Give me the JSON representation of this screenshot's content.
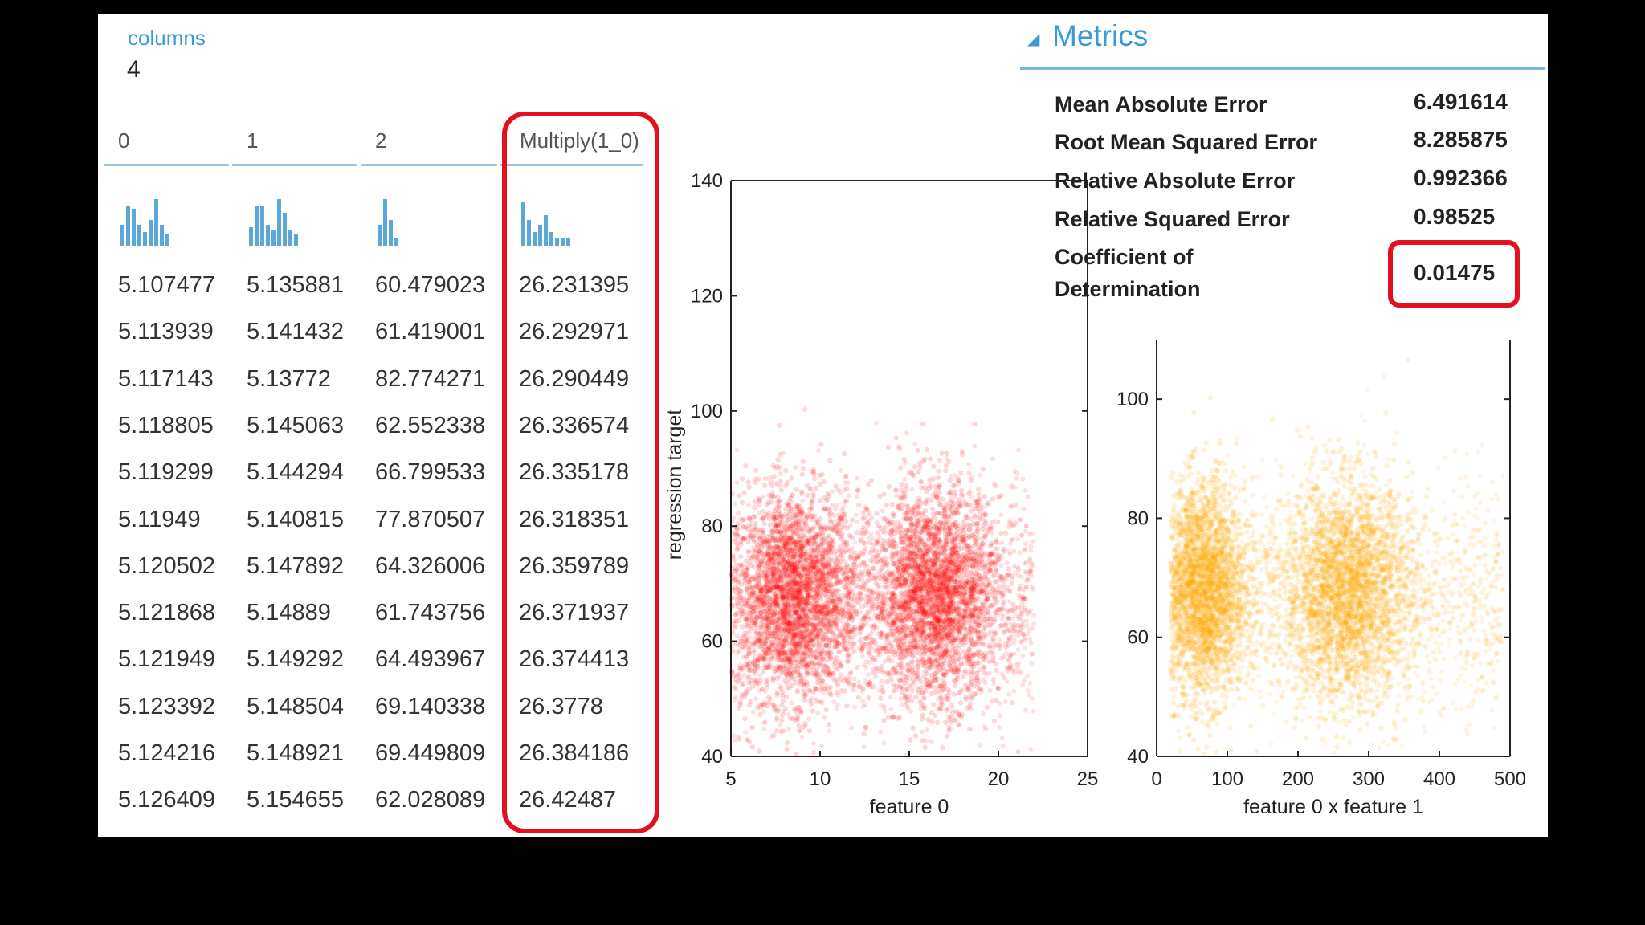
{
  "columns": {
    "label": "columns",
    "count": "4"
  },
  "table": {
    "headers": [
      "0",
      "1",
      "2",
      "Multiply(1_0)"
    ],
    "histograms": [
      [
        0.45,
        0.85,
        0.8,
        0.45,
        0.3,
        0.55,
        1.0,
        0.45,
        0.25
      ],
      [
        0.4,
        0.85,
        0.85,
        0.45,
        0.35,
        1.0,
        0.7,
        0.35,
        0.25
      ],
      [
        0.45,
        1.0,
        0.55,
        0.15
      ],
      [
        0.95,
        0.55,
        0.3,
        0.45,
        0.65,
        0.3,
        0.15,
        0.15,
        0.15
      ]
    ],
    "rows": [
      [
        "5.107477",
        "5.135881",
        "60.479023",
        "26.231395"
      ],
      [
        "5.113939",
        "5.141432",
        "61.419001",
        "26.292971"
      ],
      [
        "5.117143",
        "5.13772",
        "82.774271",
        "26.290449"
      ],
      [
        "5.118805",
        "5.145063",
        "62.552338",
        "26.336574"
      ],
      [
        "5.119299",
        "5.144294",
        "66.799533",
        "26.335178"
      ],
      [
        "5.11949",
        "5.140815",
        "77.870507",
        "26.318351"
      ],
      [
        "5.120502",
        "5.147892",
        "64.326006",
        "26.359789"
      ],
      [
        "5.121868",
        "5.14889",
        "61.743756",
        "26.371937"
      ],
      [
        "5.121949",
        "5.149292",
        "64.493967",
        "26.374413"
      ],
      [
        "5.123392",
        "5.148504",
        "69.140338",
        "26.3778"
      ],
      [
        "5.124216",
        "5.148921",
        "69.449809",
        "26.384186"
      ],
      [
        "5.126409",
        "5.154655",
        "62.028089",
        "26.42487"
      ]
    ]
  },
  "metrics": {
    "title": "Metrics",
    "items": [
      {
        "label": "Mean Absolute Error",
        "value": "6.491614"
      },
      {
        "label": "Root Mean Squared Error",
        "value": "8.285875"
      },
      {
        "label": "Relative Absolute Error",
        "value": "0.992366"
      },
      {
        "label": "Relative Squared Error",
        "value": "0.98525"
      },
      {
        "label": "Coefficient of Determination",
        "value": "0.01475"
      }
    ]
  },
  "colors": {
    "accent": "#3a9ad9",
    "highlight": "#e3101e",
    "scatter_red": "#ff0000",
    "scatter_orange": "#ffa500"
  },
  "chart_data": [
    {
      "type": "scatter",
      "xlabel": "feature 0",
      "ylabel": "regression target",
      "xlim": [
        5,
        25
      ],
      "ylim": [
        40,
        140
      ],
      "xticks": [
        "5",
        "10",
        "15",
        "20",
        "25"
      ],
      "yticks": [
        "40",
        "60",
        "80",
        "100",
        "120",
        "140"
      ],
      "clusters": [
        {
          "x_center": 8.5,
          "y_center": 68,
          "x_spread": 1.8,
          "y_spread": 9
        },
        {
          "x_center": 16.5,
          "y_center": 68,
          "x_spread": 1.8,
          "y_spread": 9
        }
      ],
      "x_range_of_points": [
        5,
        22
      ],
      "color": "#ff0000"
    },
    {
      "type": "scatter",
      "xlabel": "feature 0 x feature 1",
      "ylabel": "",
      "xlim": [
        0,
        500
      ],
      "ylim": [
        40,
        110
      ],
      "xticks": [
        "0",
        "100",
        "200",
        "300",
        "400",
        "500"
      ],
      "yticks": [
        "40",
        "60",
        "80",
        "100"
      ],
      "clusters": [
        {
          "x_center": 65,
          "y_center": 68,
          "x_spread": 30,
          "y_spread": 9
        },
        {
          "x_center": 270,
          "y_center": 68,
          "x_spread": 45,
          "y_spread": 9
        }
      ],
      "x_range_of_points": [
        20,
        490
      ],
      "color": "#ffa500"
    }
  ]
}
